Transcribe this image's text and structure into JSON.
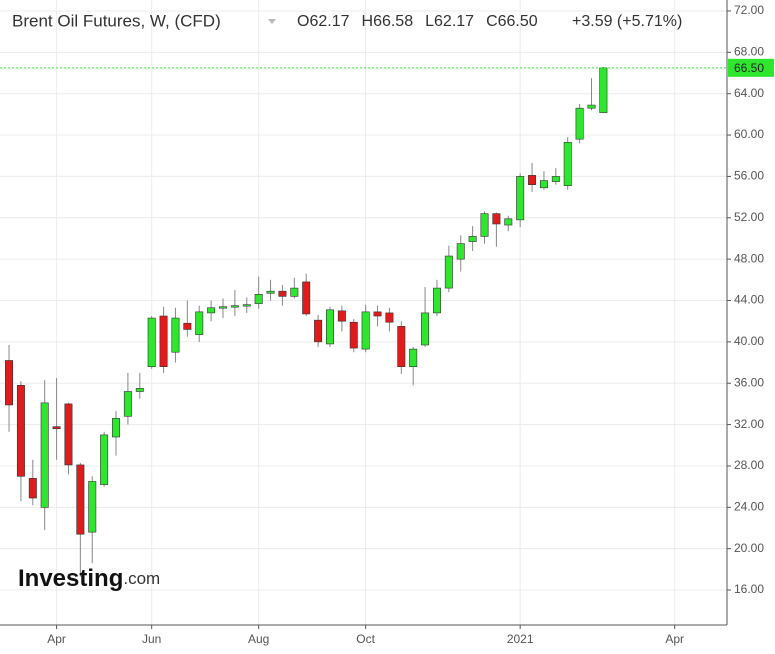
{
  "chart_data": {
    "type": "candlestick",
    "title": "Brent Oil Futures, W, (CFD)",
    "ohlc_header": [
      {
        "label": "O",
        "value": "62.17"
      },
      {
        "label": "H",
        "value": "66.58"
      },
      {
        "label": "L",
        "value": "62.17"
      },
      {
        "label": "C",
        "value": "66.50"
      }
    ],
    "change": "+3.59 (+5.71%)",
    "watermark": {
      "brand": "Investing",
      "suffix": ".com"
    },
    "x": [
      0,
      1,
      2,
      3,
      4,
      5,
      6,
      7,
      8,
      9,
      10,
      11,
      12,
      13,
      14,
      15,
      16,
      17,
      18,
      19,
      20,
      21,
      22,
      23,
      24,
      25,
      26,
      27,
      28,
      29,
      30,
      31,
      32,
      33,
      34,
      35,
      36,
      37,
      38,
      39,
      40,
      41,
      42,
      43,
      44,
      45,
      46,
      47,
      48,
      49,
      50
    ],
    "open": [
      38.2,
      35.8,
      26.8,
      24.0,
      31.8,
      34.0,
      28.1,
      21.6,
      26.2,
      30.8,
      32.8,
      35.2,
      37.6,
      42.5,
      39.0,
      41.8,
      40.7,
      42.8,
      43.3,
      43.4,
      43.5,
      43.7,
      44.7,
      44.9,
      44.4,
      45.8,
      42.1,
      39.8,
      43.0,
      41.9,
      39.3,
      42.9,
      42.8,
      41.5,
      37.6,
      39.7,
      42.8,
      45.2,
      48.0,
      49.7,
      50.2,
      52.4,
      51.3,
      51.8,
      56.1,
      54.9,
      55.5,
      55.1,
      59.6,
      62.6,
      62.17
    ],
    "high": [
      39.7,
      36.2,
      28.6,
      36.3,
      36.5,
      34.1,
      28.3,
      27.0,
      31.3,
      33.3,
      37.0,
      37.0,
      42.5,
      43.4,
      43.3,
      44.0,
      43.5,
      44.0,
      44.2,
      45.0,
      44.3,
      46.3,
      46.0,
      45.5,
      46.2,
      46.6,
      42.6,
      43.4,
      43.5,
      42.2,
      43.6,
      43.5,
      43.3,
      42.0,
      39.5,
      45.3,
      46.0,
      49.3,
      50.3,
      51.2,
      52.6,
      52.5,
      52.2,
      56.3,
      57.3,
      56.5,
      56.8,
      59.8,
      63.0,
      65.5,
      66.58
    ],
    "low": [
      31.3,
      24.6,
      24.2,
      21.8,
      28.6,
      27.2,
      17.3,
      18.6,
      26.0,
      29.0,
      32.0,
      34.5,
      37.4,
      37.0,
      38.0,
      40.5,
      40.0,
      42.0,
      42.3,
      42.5,
      42.8,
      43.2,
      44.0,
      43.5,
      44.2,
      42.5,
      39.5,
      39.5,
      41.0,
      39.0,
      39.0,
      41.5,
      41.0,
      36.9,
      35.8,
      39.5,
      42.5,
      44.8,
      46.8,
      48.8,
      49.5,
      49.2,
      50.7,
      51.1,
      54.5,
      54.7,
      55.2,
      54.7,
      59.2,
      62.4,
      62.17
    ],
    "close": [
      33.9,
      27.0,
      24.9,
      34.1,
      31.6,
      28.1,
      21.4,
      26.5,
      31.0,
      32.6,
      35.2,
      35.5,
      42.3,
      37.6,
      42.3,
      41.2,
      42.9,
      43.3,
      43.4,
      43.5,
      43.6,
      44.6,
      44.9,
      44.4,
      45.2,
      42.7,
      40.0,
      43.1,
      42.0,
      39.4,
      42.9,
      42.5,
      41.9,
      37.6,
      39.3,
      42.8,
      45.2,
      48.3,
      49.5,
      50.2,
      52.4,
      51.4,
      51.9,
      56.0,
      55.2,
      55.6,
      56.0,
      59.3,
      62.6,
      62.9,
      66.5
    ],
    "up_color": "#2ee62e",
    "down_color": "#e01b1b",
    "last_price": {
      "value": 66.5,
      "label": "66.50"
    },
    "last_price_color": "#2ee62e",
    "xlim": [
      -0.76,
      60.4
    ],
    "xticks": [
      {
        "value": 4,
        "label": "Apr"
      },
      {
        "value": 12,
        "label": "Jun"
      },
      {
        "value": 21,
        "label": "Aug"
      },
      {
        "value": 30,
        "label": "Oct"
      },
      {
        "value": 43,
        "label": "2021"
      },
      {
        "value": 56,
        "label": "Apr"
      }
    ],
    "ylim": [
      12.62,
      73.06
    ],
    "yticks": [
      {
        "value": 16,
        "label": "16.00"
      },
      {
        "value": 20,
        "label": "20.00"
      },
      {
        "value": 24,
        "label": "24.00"
      },
      {
        "value": 28,
        "label": "28.00"
      },
      {
        "value": 32,
        "label": "32.00"
      },
      {
        "value": 36,
        "label": "36.00"
      },
      {
        "value": 40,
        "label": "40.00"
      },
      {
        "value": 44,
        "label": "44.00"
      },
      {
        "value": 48,
        "label": "48.00"
      },
      {
        "value": 52,
        "label": "52.00"
      },
      {
        "value": 56,
        "label": "56.00"
      },
      {
        "value": 60,
        "label": "60.00"
      },
      {
        "value": 64,
        "label": "64.00"
      },
      {
        "value": 68,
        "label": "68.00"
      },
      {
        "value": 72,
        "label": "72.00"
      }
    ],
    "grid": true
  }
}
